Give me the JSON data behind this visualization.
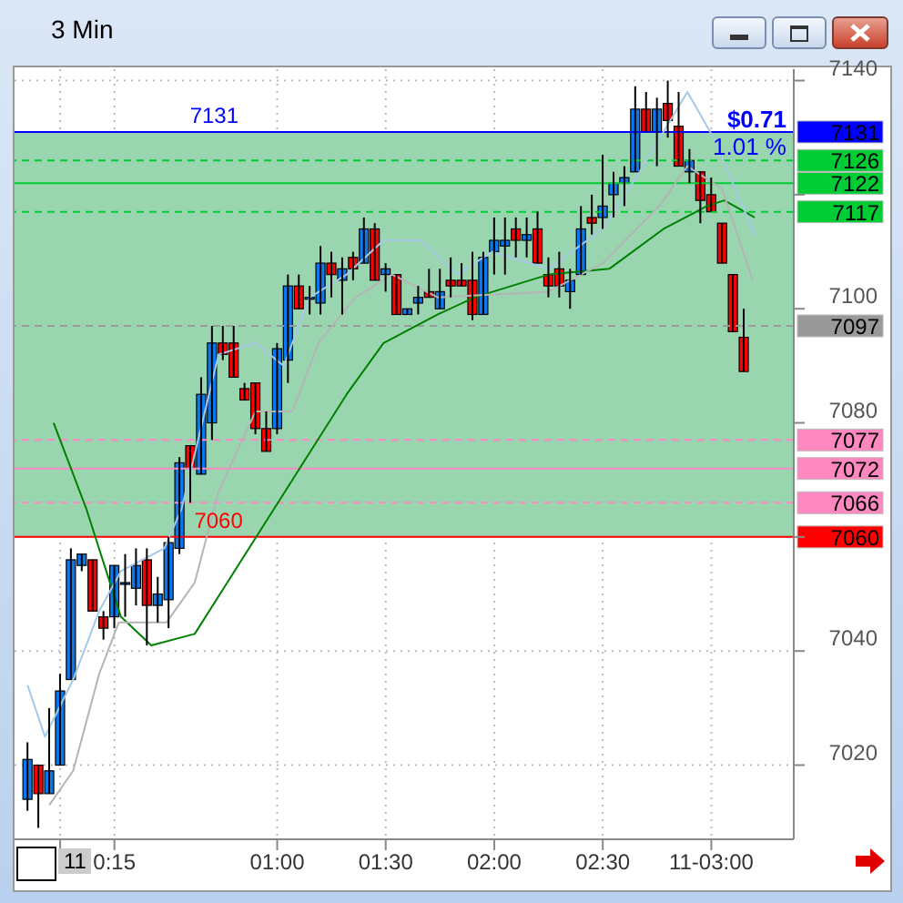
{
  "chart_data": {
    "type": "candlestick",
    "title": "3 Min",
    "x": [
      -0.15,
      -0.1,
      -0.05,
      0,
      0.05,
      0.1,
      0.15,
      0.2,
      0.25,
      0.3,
      0.35,
      0.4,
      0.45,
      0.5,
      0.55,
      0.6,
      0.65,
      0.7,
      0.75,
      0.8,
      0.85,
      0.9,
      0.95,
      1,
      1.05,
      1.1,
      1.15,
      1.2,
      1.25,
      1.3,
      1.35,
      1.4,
      1.45,
      1.5,
      1.55,
      1.6,
      1.65,
      1.7,
      1.75,
      1.8,
      1.85,
      1.9,
      1.95,
      2,
      2.05,
      2.1,
      2.15,
      2.2,
      2.25,
      2.3,
      2.35,
      2.4,
      2.45,
      2.5,
      2.55,
      2.6,
      2.65,
      2.7,
      2.75,
      2.8,
      2.85,
      2.9,
      2.95,
      3,
      3.05,
      3.1,
      3.15
    ],
    "ohlc": [
      [
        7014,
        7024,
        7012,
        7021
      ],
      [
        7020,
        7020,
        7009,
        7015
      ],
      [
        7015,
        7030,
        7015,
        7019
      ],
      [
        7020,
        7036,
        7020,
        7033
      ],
      [
        7035,
        7058,
        7035,
        7056
      ],
      [
        7055,
        7057,
        7054,
        7057
      ],
      [
        7056,
        7056,
        7047,
        7047
      ],
      [
        7046,
        7047,
        7042,
        7044
      ],
      [
        7046,
        7055,
        7044,
        7055
      ],
      [
        7052,
        7057,
        7046,
        7052
      ],
      [
        7051,
        7058,
        7048,
        7055
      ],
      [
        7056,
        7058,
        7041,
        7048
      ],
      [
        7048,
        7053,
        7045,
        7050
      ],
      [
        7049,
        7060,
        7044,
        7059
      ],
      [
        7058,
        7074,
        7057,
        7073
      ],
      [
        7076,
        7076,
        7066,
        7072
      ],
      [
        7071,
        7088,
        7071,
        7085
      ],
      [
        7080,
        7097,
        7077,
        7094
      ],
      [
        7094,
        7097,
        7091,
        7092
      ],
      [
        7094,
        7097,
        7088,
        7088
      ],
      [
        7086,
        7087,
        7084,
        7084
      ],
      [
        7087,
        7087,
        7078,
        7079
      ],
      [
        7079,
        7082,
        7075,
        7075
      ],
      [
        7079,
        7094,
        7078,
        7093
      ],
      [
        7091,
        7106,
        7087,
        7104
      ],
      [
        7104,
        7106,
        7100,
        7100
      ],
      [
        7102,
        7104,
        7099,
        7102
      ],
      [
        7101,
        7111,
        7099,
        7108
      ],
      [
        7108,
        7110,
        7102,
        7106
      ],
      [
        7105,
        7109,
        7099,
        7107
      ],
      [
        7109,
        7110,
        7105,
        7107
      ],
      [
        7108,
        7116,
        7108,
        7114
      ],
      [
        7114,
        7115,
        7105,
        7105
      ],
      [
        7106,
        7108,
        7103,
        7107
      ],
      [
        7106,
        7106,
        7099,
        7099
      ],
      [
        7099,
        7100,
        7099,
        7100
      ],
      [
        7101,
        7104,
        7099,
        7102
      ],
      [
        7103,
        7107,
        7102,
        7102
      ],
      [
        7100,
        7107,
        7100,
        7103
      ],
      [
        7105,
        7109,
        7102,
        7104
      ],
      [
        7105,
        7108,
        7104,
        7104
      ],
      [
        7105,
        7110,
        7098,
        7099
      ],
      [
        7099,
        7110,
        7099,
        7109
      ],
      [
        7110,
        7116,
        7106,
        7112
      ],
      [
        7111,
        7116,
        7106,
        7112
      ],
      [
        7114,
        7116,
        7109,
        7112
      ],
      [
        7112,
        7116,
        7109,
        7113
      ],
      [
        7114,
        7117,
        7108,
        7108
      ],
      [
        7106,
        7109,
        7102,
        7104
      ],
      [
        7107,
        7110,
        7102,
        7104
      ],
      [
        7103,
        7107,
        7100,
        7105
      ],
      [
        7106,
        7118,
        7106,
        7114
      ],
      [
        7116,
        7120,
        7113,
        7115
      ],
      [
        7116,
        7127,
        7114,
        7118
      ],
      [
        7120,
        7124,
        7116,
        7122
      ],
      [
        7122,
        7125,
        7118,
        7123
      ],
      [
        7124,
        7139,
        7124,
        7135
      ],
      [
        7135,
        7138,
        7131,
        7131
      ],
      [
        7131,
        7137,
        7125,
        7135
      ],
      [
        7136,
        7140,
        7130,
        7133
      ],
      [
        7132,
        7138,
        7125,
        7125
      ],
      [
        7124,
        7128,
        7122,
        7126
      ],
      [
        7124,
        7124,
        7115,
        7119
      ],
      [
        7120,
        7123,
        7117,
        7117
      ],
      [
        7115,
        7115,
        7108,
        7108
      ],
      [
        7106,
        7106,
        7096,
        7096
      ],
      [
        7095,
        7100,
        7089,
        7089
      ]
    ],
    "colors": [
      "#0a78f0",
      "#ff0000",
      "#0a78f0",
      "#0a78f0",
      "#0a78f0",
      "#0a78f0",
      "#ff0000",
      "#ff0000",
      "#0a78f0",
      "#0a78f0",
      "#0a78f0",
      "#ff0000",
      "#0a78f0",
      "#0a78f0",
      "#0a78f0",
      "#ff0000",
      "#0a78f0",
      "#0a78f0",
      "#ff0000",
      "#ff0000",
      "#ff0000",
      "#ff0000",
      "#ff0000",
      "#0a78f0",
      "#0a78f0",
      "#ff0000",
      "#0a78f0",
      "#0a78f0",
      "#ff0000",
      "#0a78f0",
      "#ff0000",
      "#0a78f0",
      "#ff0000",
      "#0a78f0",
      "#ff0000",
      "#0a78f0",
      "#0a78f0",
      "#ff0000",
      "#0a78f0",
      "#ff0000",
      "#ff0000",
      "#ff0000",
      "#0a78f0",
      "#0a78f0",
      "#0a78f0",
      "#ff0000",
      "#0a78f0",
      "#ff0000",
      "#ff0000",
      "#ff0000",
      "#0a78f0",
      "#0a78f0",
      "#ff0000",
      "#0a78f0",
      "#0a78f0",
      "#0a78f0",
      "#0a78f0",
      "#ff0000",
      "#0a78f0",
      "#ff0000",
      "#ff0000",
      "#0a78f0",
      "#ff0000",
      "#ff0000",
      "#ff0000",
      "#ff0000",
      "#ff0000"
    ],
    "series": [
      {
        "type": "line",
        "color": "#008000",
        "x": [
          -0.03,
          0.12,
          0.28,
          0.42,
          0.62,
          0.77,
          1.07,
          1.32,
          1.49,
          1.74,
          1.91,
          2.25,
          2.53,
          2.78,
          2.98,
          3.06,
          3.2
        ],
        "values": [
          7080,
          7065,
          7046,
          7041,
          7043,
          7052,
          7070,
          7085,
          7094,
          7099,
          7102,
          7106,
          7107,
          7114,
          7118,
          7119,
          7116
        ]
      },
      {
        "type": "line",
        "color": "#a6c8e6",
        "x": [
          -0.15,
          -0.07,
          0.06,
          0.18,
          0.28,
          0.48,
          0.56,
          0.73,
          0.9,
          1.03,
          1.15,
          1.32,
          1.49,
          1.66,
          1.83,
          1.99,
          2.25,
          2.5,
          2.67,
          2.89,
          3.01,
          3.2
        ],
        "values": [
          7034,
          7025,
          7035,
          7047,
          7054,
          7058,
          7065,
          7092,
          7094,
          7090,
          7102,
          7106,
          7112,
          7112,
          7106,
          7110,
          7107,
          7114,
          7124,
          7138,
          7130,
          7113
        ]
      },
      {
        "type": "line",
        "color": "#b4b4b4",
        "x": [
          -0.05,
          0.06,
          0.18,
          0.27,
          0.49,
          0.62,
          0.73,
          0.9,
          1.07,
          1.19,
          1.36,
          1.53,
          1.74,
          2.25,
          2.5,
          2.76,
          2.89,
          3.05,
          3.19
        ],
        "values": [
          7013,
          7019,
          7036,
          7045,
          7045,
          7052,
          7068,
          7082,
          7082,
          7094,
          7102,
          7106,
          7102,
          7103,
          7108,
          7118,
          7125,
          7121,
          7105
        ]
      }
    ],
    "xlim": [
      -0.21,
      3.38
    ],
    "xticks": [
      {
        "value": 0,
        "label": null
      },
      {
        "value": 0.25,
        "label": "0:15"
      },
      {
        "value": 1,
        "label": "01:00"
      },
      {
        "value": 1.5,
        "label": "01:30"
      },
      {
        "value": 2,
        "label": "02:00"
      },
      {
        "value": 2.5,
        "label": "02:30"
      },
      {
        "value": 3,
        "label": "11-03:00"
      }
    ],
    "ylim": [
      7007,
      7142
    ],
    "yticks": [
      7020,
      7040,
      {
        "value": 7060,
        "label": null
      },
      7080,
      7100,
      {
        "value": 7120,
        "label": null
      },
      7140
    ],
    "grid": true,
    "marker": "none",
    "bands": [
      {
        "axis": "y",
        "from": 7060,
        "to": 7131,
        "color": "#99d6b0"
      }
    ],
    "ref_lines": [
      {
        "axis": "y",
        "value": 7131,
        "label": "7131",
        "color": "#0000ff",
        "line_style": "solid"
      },
      {
        "axis": "y",
        "value": 7126,
        "label": "7126",
        "color": "#00cc33",
        "line_style": "dashed"
      },
      {
        "axis": "y",
        "value": 7122,
        "label": "7122",
        "color": "#00cc33",
        "line_style": "solid"
      },
      {
        "axis": "y",
        "value": 7117,
        "label": "7117",
        "color": "#00cc33",
        "line_style": "dashed"
      },
      {
        "axis": "y",
        "value": 7097,
        "label": "7097",
        "color": "#999999",
        "line_style": "dashed"
      },
      {
        "axis": "y",
        "value": 7077,
        "label": "7077",
        "color": "#ff88c0",
        "line_style": "dashed"
      },
      {
        "axis": "y",
        "value": 7072,
        "label": "7072",
        "color": "#ff88c0",
        "line_style": "solid"
      },
      {
        "axis": "y",
        "value": 7066,
        "label": "7066",
        "color": "#ff88c0",
        "line_style": "dashed"
      },
      {
        "axis": "y",
        "value": 7060,
        "label": "7060",
        "color": "#ff0000",
        "line_style": "solid"
      }
    ],
    "annotations": [
      "$0.71",
      "1.01 %",
      "11",
      {
        "text": "7131",
        "x": 0.71,
        "y": 7131
      },
      {
        "text": "7060",
        "x": 0.73,
        "y": 7060
      }
    ]
  }
}
